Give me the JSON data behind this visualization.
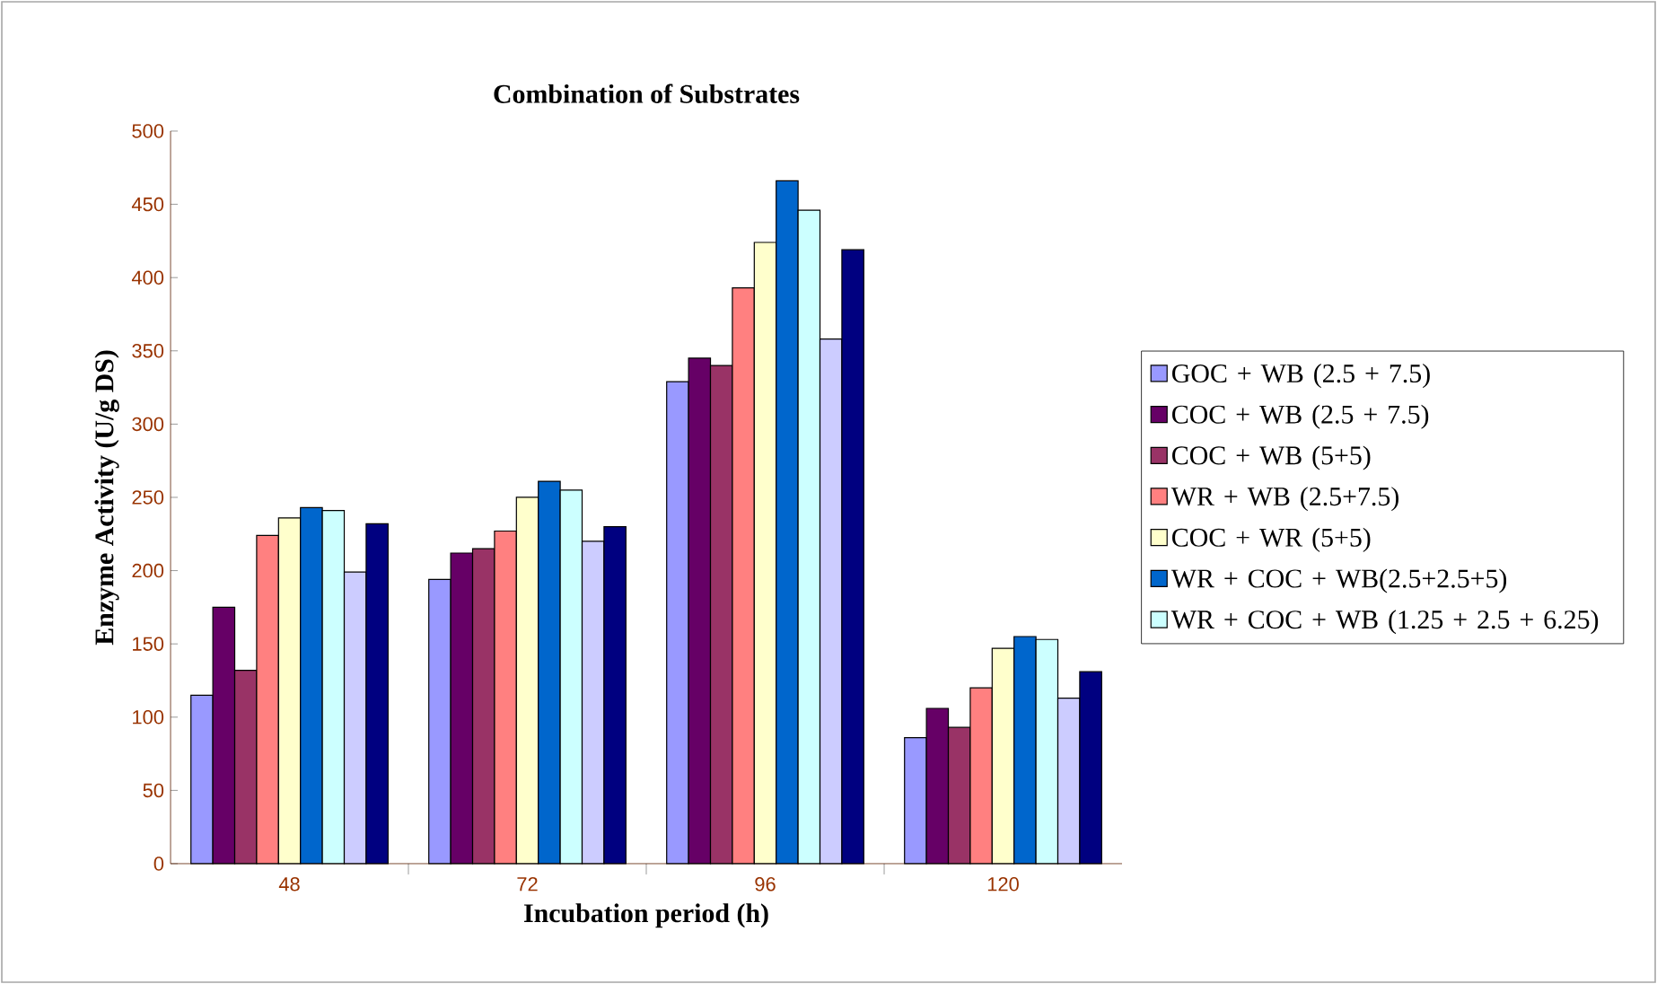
{
  "chart_data": {
    "type": "bar",
    "title": "Combination of Substrates",
    "xlabel": "Incubation period (h)",
    "ylabel": "Enzyme Activity (U/g DS)",
    "categories": [
      "48",
      "72",
      "96",
      "120"
    ],
    "ylim": [
      0,
      500
    ],
    "yticks": [
      0,
      50,
      100,
      150,
      200,
      250,
      300,
      350,
      400,
      450,
      500
    ],
    "legend": "right",
    "series": [
      {
        "name": "GOC + WB (2.5 + 7.5)",
        "color": "#9999ff",
        "values": [
          115,
          194,
          329,
          86
        ]
      },
      {
        "name": "COC + WB (2.5 + 7.5)",
        "color": "#660066",
        "values": [
          175,
          212,
          345,
          106
        ]
      },
      {
        "name": "COC + WB (5+5)",
        "color": "#993366",
        "values": [
          132,
          215,
          340,
          93
        ]
      },
      {
        "name": "WR + WB (2.5+7.5)",
        "color": "#ff8080",
        "values": [
          224,
          227,
          393,
          120
        ]
      },
      {
        "name": "COC + WR (5+5)",
        "color": "#ffffcc",
        "values": [
          236,
          250,
          424,
          147
        ]
      },
      {
        "name": "WR + COC + WB(2.5+2.5+5)",
        "color": "#0066cc",
        "values": [
          243,
          261,
          466,
          155
        ]
      },
      {
        "name": "WR + COC + WB (1.25 + 2.5 + 6.25)",
        "color": "#ccffff",
        "values": [
          241,
          255,
          446,
          153
        ]
      },
      {
        "color": "#ccccff",
        "values": [
          199,
          220,
          358,
          113
        ]
      },
      {
        "color": "#000080",
        "values": [
          232,
          230,
          419,
          131
        ]
      }
    ]
  }
}
